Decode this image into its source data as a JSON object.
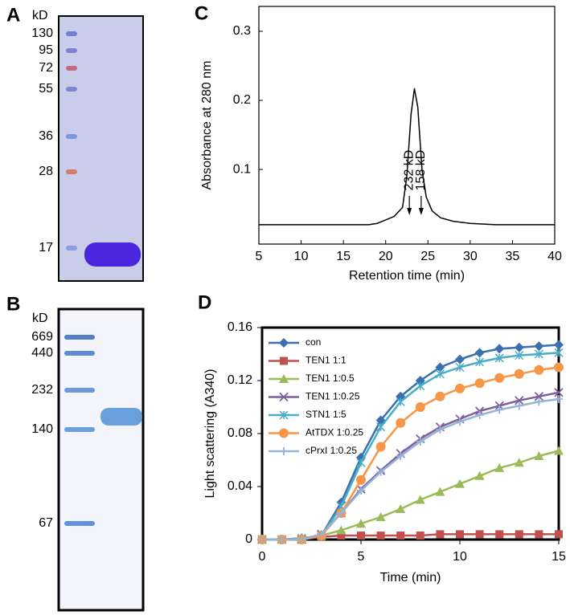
{
  "gels": [
    {
      "panel_label": "A",
      "unit": "kD",
      "markers": [
        "130",
        "95",
        "72",
        "55",
        "36",
        "28",
        "17"
      ]
    },
    {
      "panel_label": "B",
      "unit": "kD",
      "markers": [
        "669",
        "440",
        "232",
        "140",
        "67"
      ]
    }
  ],
  "chart_data": [
    {
      "type": "line",
      "panel_label": "C",
      "ylabel": "Absorbance at 280 nm",
      "xlabel": "Retention time (min)",
      "x": [
        5,
        18,
        19,
        20,
        21,
        22,
        22.5,
        23,
        23.4,
        23.8,
        24.3,
        24.8,
        25.5,
        26.5,
        28,
        30,
        33,
        40
      ],
      "values": [
        0.02,
        0.02,
        0.022,
        0.027,
        0.032,
        0.045,
        0.09,
        0.18,
        0.217,
        0.19,
        0.1,
        0.06,
        0.04,
        0.03,
        0.025,
        0.022,
        0.02,
        0.02
      ],
      "color": "#000000",
      "xlim": [
        5,
        40
      ],
      "xticks": [
        5,
        10,
        15,
        20,
        25,
        30,
        35,
        40
      ],
      "ylim": [
        -0.008,
        0.336
      ],
      "yticks": [
        0.1,
        0.2,
        0.3
      ],
      "annotations": [
        {
          "text": "232 kD",
          "x": 22.8
        },
        {
          "text": "158 kD",
          "x": 24.2
        }
      ]
    },
    {
      "type": "line",
      "panel_label": "D",
      "ylabel": "Light scattering (A340)",
      "xlabel": "Time (min)",
      "x": [
        0,
        1,
        2,
        3,
        4,
        5,
        6,
        7,
        8,
        9,
        10,
        11,
        12,
        13,
        14,
        15
      ],
      "xlim": [
        0,
        15
      ],
      "xticks": [
        0,
        5,
        10,
        15
      ],
      "ylim": [
        0,
        0.16
      ],
      "yticks": [
        0,
        0.04,
        0.08,
        0.12,
        0.16
      ],
      "legend": "upper left",
      "series": [
        {
          "name": "con",
          "color": "#3a6fb0",
          "marker": "diamond",
          "values": [
            0,
            0,
            0.001,
            0.003,
            0.028,
            0.062,
            0.09,
            0.108,
            0.12,
            0.13,
            0.136,
            0.141,
            0.144,
            0.145,
            0.146,
            0.147
          ]
        },
        {
          "name": "TEN1 1:1",
          "color": "#c0504d",
          "marker": "square",
          "values": [
            0,
            0,
            0,
            0.002,
            0.003,
            0.003,
            0.003,
            0.003,
            0.003,
            0.004,
            0.004,
            0.004,
            0.004,
            0.004,
            0.004,
            0.004
          ]
        },
        {
          "name": "TEN1 1:0.5",
          "color": "#9bbb59",
          "marker": "triangle",
          "values": [
            0,
            0,
            0,
            0.003,
            0.007,
            0.012,
            0.017,
            0.023,
            0.03,
            0.036,
            0.042,
            0.048,
            0.054,
            0.058,
            0.063,
            0.067
          ]
        },
        {
          "name": "TEN1 1:0.25",
          "color": "#7f5f9a",
          "marker": "x",
          "values": [
            0,
            0,
            0,
            0.004,
            0.02,
            0.038,
            0.052,
            0.065,
            0.076,
            0.085,
            0.091,
            0.097,
            0.101,
            0.105,
            0.108,
            0.111
          ]
        },
        {
          "name": "STN1 1:5",
          "color": "#4bacc6",
          "marker": "star",
          "values": [
            0,
            0,
            0.001,
            0.003,
            0.025,
            0.058,
            0.085,
            0.104,
            0.116,
            0.125,
            0.13,
            0.134,
            0.137,
            0.139,
            0.14,
            0.141
          ]
        },
        {
          "name": "AtTDX 1:0.25",
          "color": "#f79646",
          "marker": "circle",
          "values": [
            0,
            0,
            0,
            0.003,
            0.02,
            0.045,
            0.07,
            0.088,
            0.1,
            0.108,
            0.114,
            0.118,
            0.122,
            0.125,
            0.128,
            0.13
          ]
        },
        {
          "name": "cPrxI 1:0.25",
          "color": "#95b3d7",
          "marker": "plus",
          "values": [
            0,
            0,
            0,
            0.004,
            0.02,
            0.037,
            0.051,
            0.063,
            0.074,
            0.083,
            0.089,
            0.094,
            0.098,
            0.101,
            0.104,
            0.106
          ]
        }
      ]
    }
  ]
}
